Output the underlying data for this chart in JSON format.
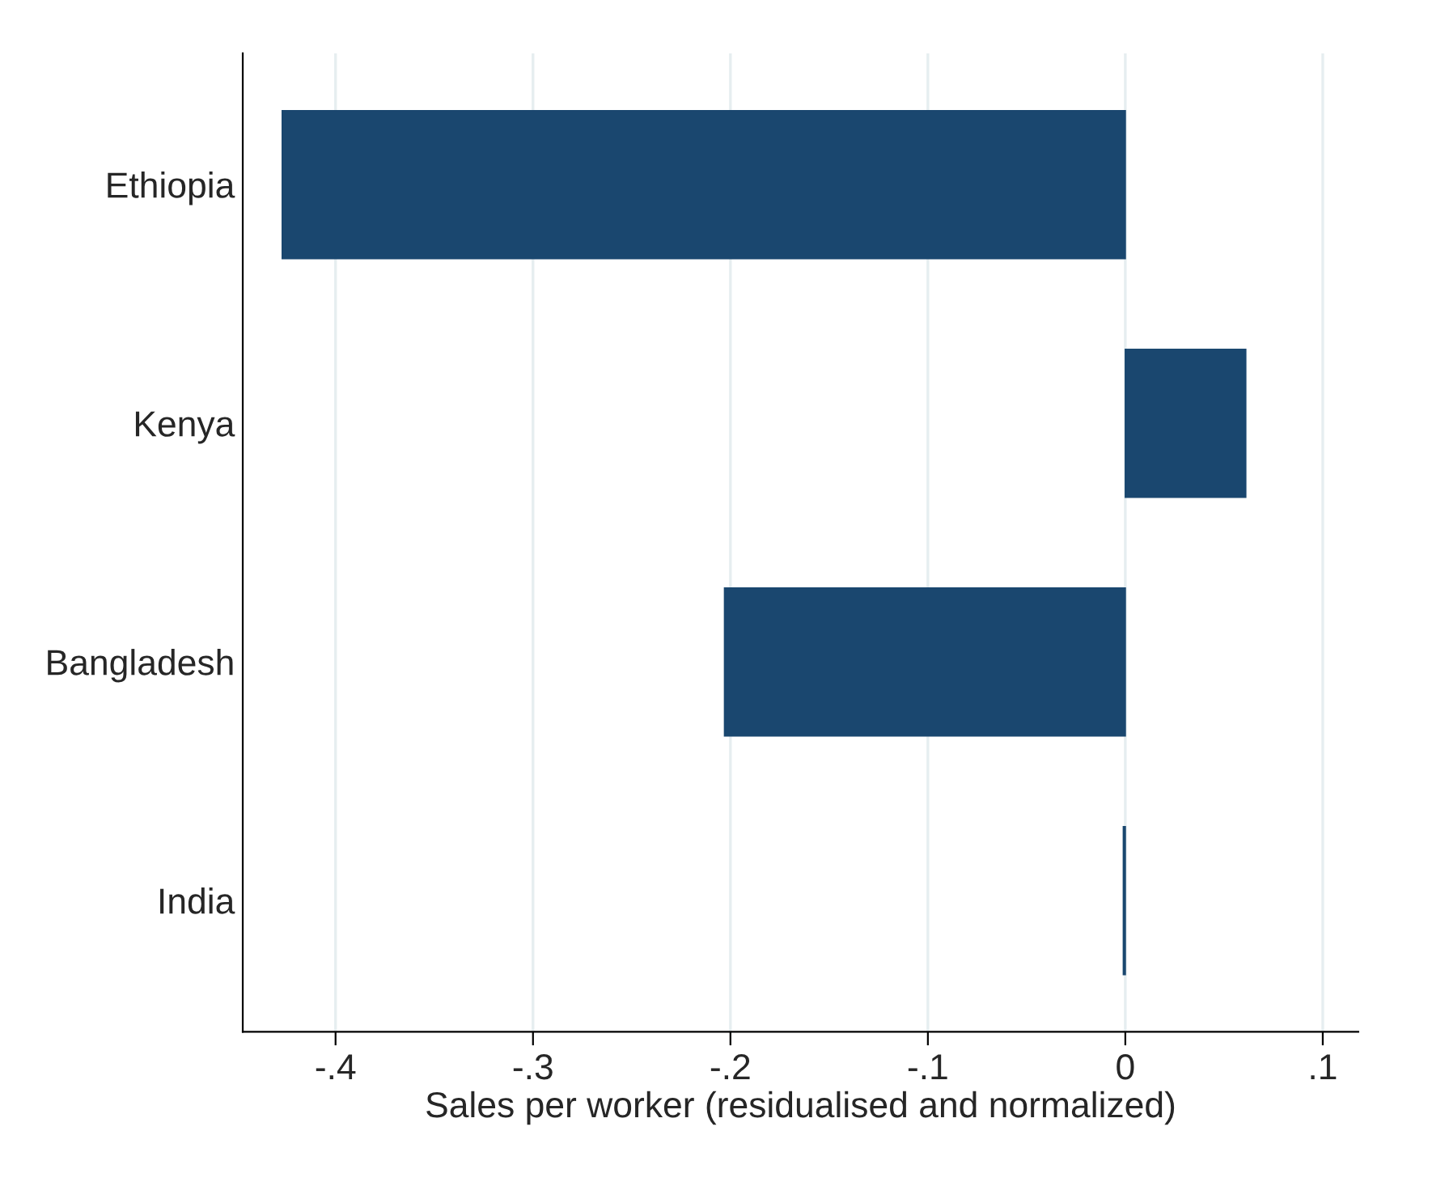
{
  "chart_data": {
    "type": "bar",
    "orientation": "horizontal",
    "categories": [
      "Ethiopia",
      "Kenya",
      "Bangladesh",
      "India"
    ],
    "values": [
      -0.427,
      0.061,
      -0.203,
      -0.001
    ],
    "color": "#1a476f",
    "xlabel": "Sales per worker (residualised and normalized)",
    "xlim": [
      -0.447,
      0.118
    ],
    "xticks": [
      {
        "value": -0.4,
        "label": "-.4"
      },
      {
        "value": -0.3,
        "label": "-.3"
      },
      {
        "value": -0.2,
        "label": "-.2"
      },
      {
        "value": -0.1,
        "label": "-.1"
      },
      0,
      {
        "value": 0.1,
        "label": ".1"
      }
    ],
    "grid": "x"
  }
}
